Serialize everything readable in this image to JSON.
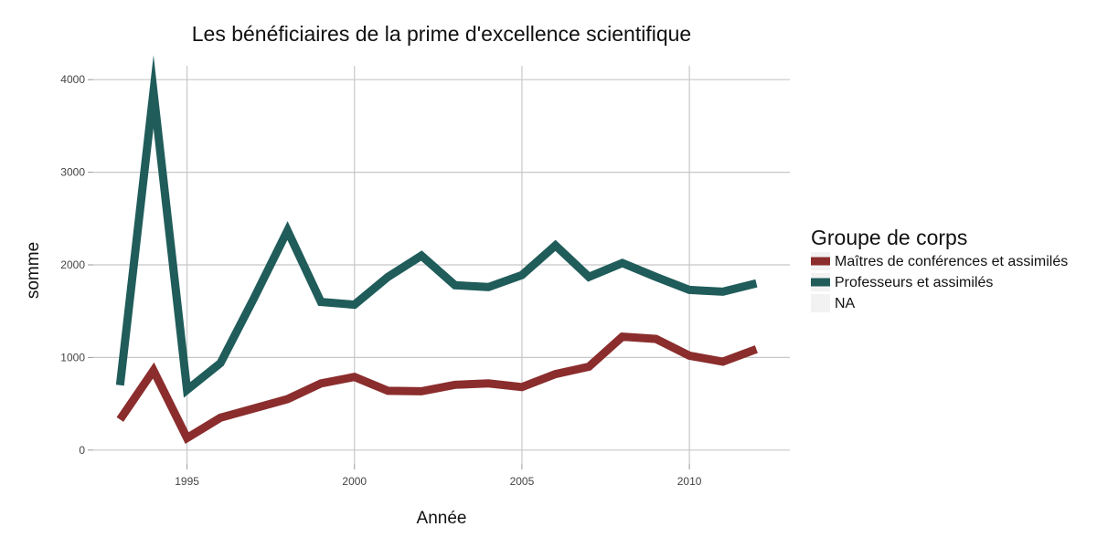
{
  "chart_data": {
    "type": "line",
    "title": "Les bénéficiaires de la prime d'excellence scientifique",
    "xlabel": "Année",
    "ylabel": "somme",
    "xlim": [
      1992.2,
      2013.0
    ],
    "ylim": [
      -150,
      4150
    ],
    "x_ticks": [
      1995,
      2000,
      2005,
      2010
    ],
    "y_ticks": [
      0,
      1000,
      2000,
      3000,
      4000
    ],
    "grid": true,
    "legend": {
      "title": "Groupe de corps",
      "position": "right",
      "entries": [
        {
          "label": "Maîtres de conférences et assimilés",
          "color": "#8b2d2d"
        },
        {
          "label": "Professeurs et assimilés",
          "color": "#1f5c5a"
        },
        {
          "label": "NA",
          "color": "#f0f0f0"
        }
      ]
    },
    "x": [
      1993,
      1994,
      1995,
      1996,
      1997,
      1998,
      1999,
      2000,
      2001,
      2002,
      2003,
      2004,
      2005,
      2006,
      2007,
      2008,
      2009,
      2010,
      2011,
      2012
    ],
    "series": [
      {
        "name": "Maîtres de conférences et assimilés",
        "color": "#8b2d2d",
        "values": [
          330,
          860,
          130,
          350,
          450,
          550,
          720,
          790,
          640,
          635,
          705,
          720,
          680,
          820,
          900,
          1225,
          1200,
          1020,
          955,
          1090
        ]
      },
      {
        "name": "Professeurs et assimilés",
        "color": "#1f5c5a",
        "values": [
          700,
          3870,
          650,
          940,
          1640,
          2370,
          1600,
          1570,
          1870,
          2100,
          1780,
          1760,
          1890,
          2210,
          1870,
          2020,
          1870,
          1730,
          1710,
          1800
        ]
      }
    ]
  }
}
